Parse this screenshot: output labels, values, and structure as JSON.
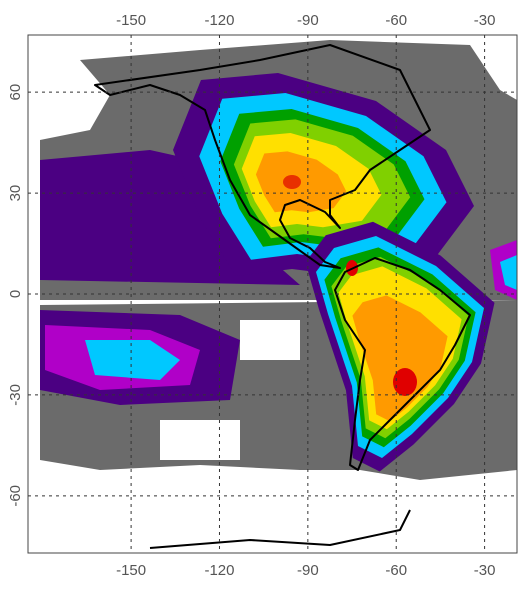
{
  "map": {
    "xlim": [
      -185,
      -19
    ],
    "ylim": [
      -77,
      77
    ],
    "xticks": [
      -150,
      -120,
      -90,
      -60,
      -30
    ],
    "yticks": [
      60,
      30,
      0,
      -30,
      -60
    ]
  }
}
